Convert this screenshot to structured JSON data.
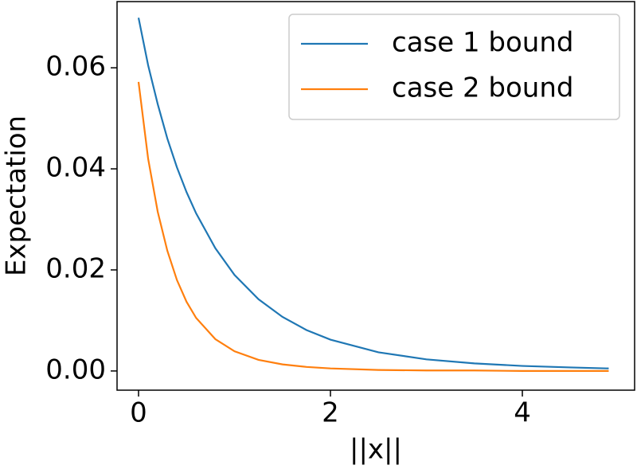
{
  "chart_data": {
    "type": "line",
    "x_label": "||x||",
    "y_label": "Expectation",
    "x": [
      0,
      0.1,
      0.2,
      0.3,
      0.4,
      0.5,
      0.6,
      0.8,
      1.0,
      1.25,
      1.5,
      1.75,
      2,
      2.5,
      3,
      3.5,
      4,
      4.5,
      4.9
    ],
    "series": [
      {
        "name": "case 1 bound",
        "color": "#1f77b4",
        "values": [
          0.0699,
          0.0605,
          0.0528,
          0.046,
          0.0403,
          0.0354,
          0.0312,
          0.0243,
          0.019,
          0.0142,
          0.0107,
          0.0081,
          0.0062,
          0.0037,
          0.0023,
          0.0015,
          0.001,
          0.0007,
          0.0005
        ]
      },
      {
        "name": "case 2 bound",
        "color": "#ff7f0e",
        "values": [
          0.0572,
          0.042,
          0.0315,
          0.0238,
          0.018,
          0.0137,
          0.0105,
          0.0063,
          0.0039,
          0.0022,
          0.0013,
          0.0008,
          0.0005,
          0.0002,
          0.0001,
          0.0001,
          0,
          0,
          0
        ]
      }
    ],
    "xlim": [
      -0.224,
      5.17
    ],
    "ylim": [
      -0.0038,
      0.0731
    ],
    "xticks": [
      0,
      2,
      4
    ],
    "yticks": [
      {
        "value": 0,
        "label": "0.00"
      },
      {
        "value": 0.02,
        "label": "0.02"
      },
      {
        "value": 0.04,
        "label": "0.04"
      },
      {
        "value": 0.06,
        "label": "0.06"
      }
    ],
    "legend": "upper right"
  }
}
